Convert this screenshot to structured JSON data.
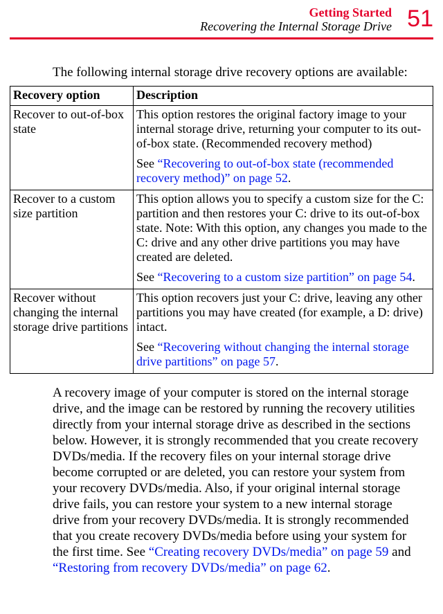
{
  "header": {
    "section": "Getting Started",
    "subsection": "Recovering the Internal Storage Drive",
    "page_number": "51",
    "section_color": "#e4002b",
    "rule_color": "#e4002b"
  },
  "intro": "The following internal storage drive recovery options are available:",
  "table": {
    "columns": [
      "Recovery option",
      "Description"
    ],
    "rows": [
      {
        "option": "Recover to out-of-box state",
        "desc": "This option restores the original factory image to your internal storage drive, returning your computer to its out-of-box state. (Recommended recovery method)",
        "see_prefix": "See ",
        "link": "“Recovering to out-of-box state (recommended recovery method)” on page 52",
        "see_suffix": "."
      },
      {
        "option": "Recover to a custom size partition",
        "desc": "This option allows you to specify a custom size for the C: partition and then restores your C: drive to its out-of-box state. Note: With this option, any changes you made to the C: drive and any other drive partitions you may have created are deleted.",
        "see_prefix": "See ",
        "link": "“Recovering to a custom size partition” on page 54",
        "see_suffix": "."
      },
      {
        "option": "Recover without changing the internal storage drive partitions",
        "desc": "This option recovers just your C: drive, leaving any other partitions you may have created (for example, a D: drive) intact.",
        "see_prefix": "See ",
        "link": "“Recovering without changing the internal storage drive partitions” on page 57",
        "see_suffix": "."
      }
    ]
  },
  "body": {
    "pre": "A recovery image of your computer is stored on the internal storage drive, and the image can be restored by running the recovery utilities directly from your internal storage drive as described in the sections below. However, it is strongly recommended that you create recovery DVDs/media. If the recovery files on your internal storage drive become corrupted or are deleted, you can restore your system from your recovery DVDs/media. Also, if your original internal storage drive fails, you can restore your system to a new internal storage drive from your recovery DVDs/media. It is strongly recommended that you create recovery DVDs/media before using your system for the first time. See ",
    "link1": "“Creating recovery DVDs/media” on page 59",
    "mid": " and ",
    "link2": "“Restoring from recovery DVDs/media” on page 62",
    "post": "."
  },
  "colors": {
    "link": "#0016ee",
    "text": "#000000",
    "background": "#ffffff"
  }
}
